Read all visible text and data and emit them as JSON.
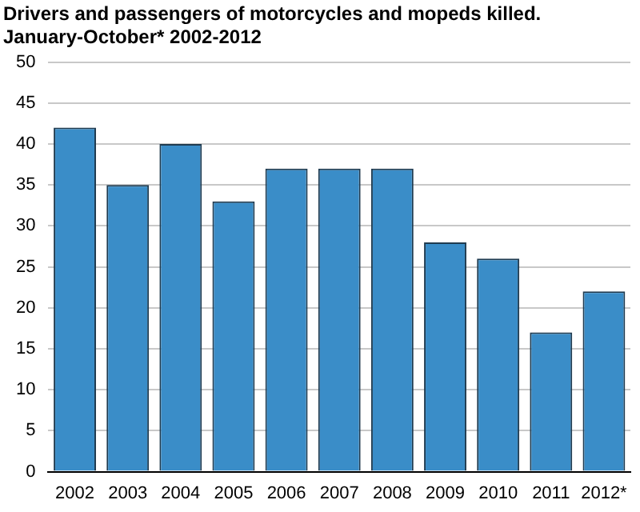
{
  "chart_data": {
    "type": "bar",
    "title": "Drivers and passengers of motorcycles and mopeds killed.",
    "subtitle": "January-October* 2002-2012",
    "categories": [
      "2002",
      "2003",
      "2004",
      "2005",
      "2006",
      "2007",
      "2008",
      "2009",
      "2010",
      "2011",
      "2012*"
    ],
    "values": [
      42,
      35,
      40,
      33,
      37,
      37,
      37,
      28,
      26,
      17,
      22
    ],
    "color": "#3a8dc8",
    "ylim": [
      0,
      50
    ],
    "yticks": [
      0,
      5,
      10,
      15,
      20,
      25,
      30,
      35,
      40,
      45,
      50
    ],
    "grid": "y",
    "legend": false
  }
}
